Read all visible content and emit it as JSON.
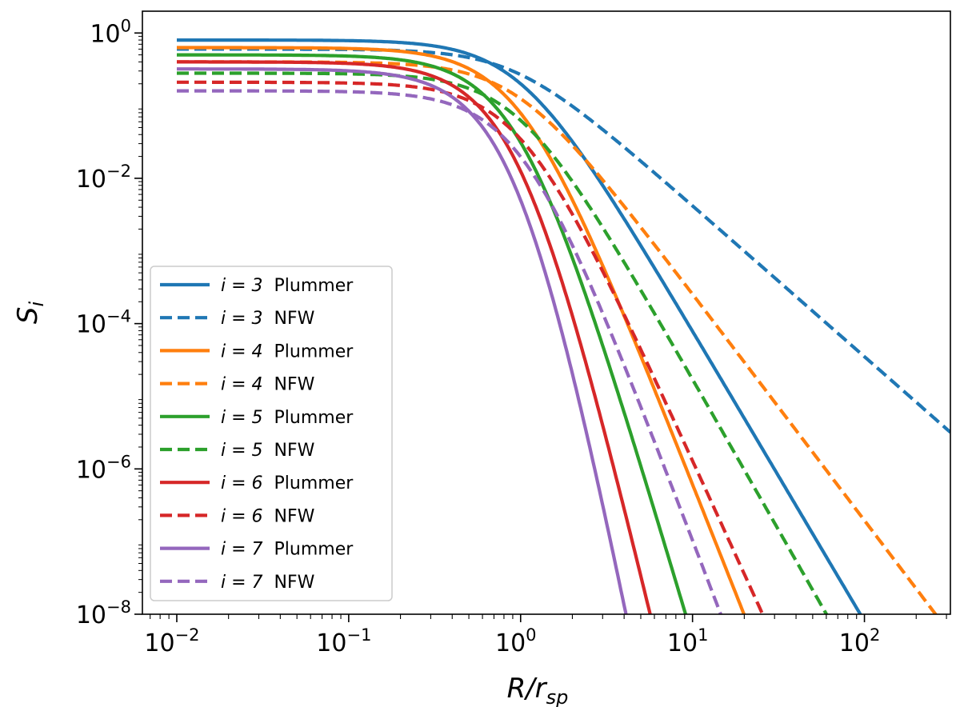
{
  "chart_data": {
    "type": "line",
    "title": "",
    "xlabel": {
      "main": "R/r",
      "sub": "sp"
    },
    "ylabel": {
      "main": "S",
      "sub": "i"
    },
    "xscale": "log",
    "yscale": "log",
    "xlim_exp": [
      -2.2,
      2.5
    ],
    "ylim_exp": [
      -8,
      0.3
    ],
    "x_ticks": [
      {
        "base": "10",
        "exp": "−2",
        "value_exp": -2
      },
      {
        "base": "10",
        "exp": "−1",
        "value_exp": -1
      },
      {
        "base": "10",
        "exp": "0",
        "value_exp": 0
      },
      {
        "base": "10",
        "exp": "1",
        "value_exp": 1
      },
      {
        "base": "10",
        "exp": "2",
        "value_exp": 2
      }
    ],
    "y_ticks": [
      {
        "base": "10",
        "exp": "0",
        "value_exp": 0
      },
      {
        "base": "10",
        "exp": "−2",
        "value_exp": -2
      },
      {
        "base": "10",
        "exp": "−4",
        "value_exp": -4
      },
      {
        "base": "10",
        "exp": "−6",
        "value_exp": -6
      },
      {
        "base": "10",
        "exp": "−8",
        "value_exp": -8
      }
    ],
    "legend_position": "lower-left",
    "x_range_exp": [
      -2,
      2.5
    ],
    "series": [
      {
        "name": "i = 3  Plummer",
        "i_label": "i = 3",
        "profile_label": "Plummer",
        "color": "#1f77b4",
        "dash": "solid",
        "model": "plummer",
        "i": 3,
        "amplitude": 0.8
      },
      {
        "name": "i = 3  NFW",
        "i_label": "i = 3",
        "profile_label": "NFW",
        "color": "#1f77b4",
        "dash": "dashed",
        "model": "nfw",
        "i": 3,
        "amplitude": 0.6
      },
      {
        "name": "i = 4  Plummer",
        "i_label": "i = 4",
        "profile_label": "Plummer",
        "color": "#ff7f0e",
        "dash": "solid",
        "model": "plummer",
        "i": 4,
        "amplitude": 0.63
      },
      {
        "name": "i = 4  NFW",
        "i_label": "i = 4",
        "profile_label": "NFW",
        "color": "#ff7f0e",
        "dash": "dashed",
        "model": "nfw",
        "i": 4,
        "amplitude": 0.4
      },
      {
        "name": "i = 5  Plummer",
        "i_label": "i = 5",
        "profile_label": "Plummer",
        "color": "#2ca02c",
        "dash": "solid",
        "model": "plummer",
        "i": 5,
        "amplitude": 0.5
      },
      {
        "name": "i = 5  NFW",
        "i_label": "i = 5",
        "profile_label": "NFW",
        "color": "#2ca02c",
        "dash": "dashed",
        "model": "nfw",
        "i": 5,
        "amplitude": 0.28
      },
      {
        "name": "i = 6  Plummer",
        "i_label": "i = 6",
        "profile_label": "Plummer",
        "color": "#d62728",
        "dash": "solid",
        "model": "plummer",
        "i": 6,
        "amplitude": 0.4
      },
      {
        "name": "i = 6  NFW",
        "i_label": "i = 6",
        "profile_label": "NFW",
        "color": "#d62728",
        "dash": "dashed",
        "model": "nfw",
        "i": 6,
        "amplitude": 0.21
      },
      {
        "name": "i = 7  Plummer",
        "i_label": "i = 7",
        "profile_label": "Plummer",
        "color": "#9467bd",
        "dash": "solid",
        "model": "plummer",
        "i": 7,
        "amplitude": 0.32
      },
      {
        "name": "i = 7  NFW",
        "i_label": "i = 7",
        "profile_label": "NFW",
        "color": "#9467bd",
        "dash": "dashed",
        "model": "nfw",
        "i": 7,
        "amplitude": 0.16
      }
    ]
  }
}
